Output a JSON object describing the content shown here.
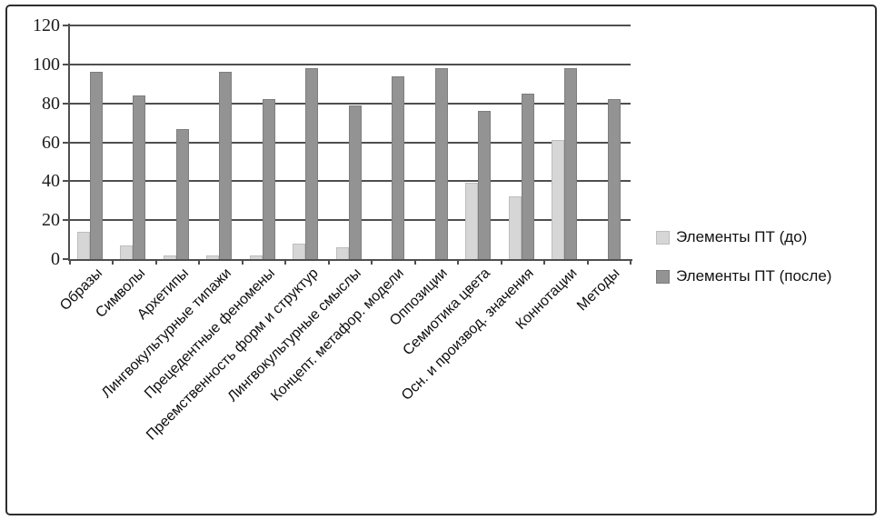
{
  "chart_data": {
    "type": "bar",
    "title": "",
    "xlabel": "",
    "ylabel": "",
    "categories": [
      "Образы",
      "Символы",
      "Архетипы",
      "Лингвокультурные типажи",
      "Прецедентные феномены",
      "Преемственность форм и структур",
      "Лингвокультурные смыслы",
      "Концепт. метафор. модели",
      "Оппозиции",
      "Семиотика цвета",
      "Осн. и производ. значения",
      "Коннотации",
      "Методы"
    ],
    "series": [
      {
        "name": "Элементы ПТ (до)",
        "color": "#d6d6d6",
        "border_color": "#bdbdbd",
        "values": [
          14,
          7,
          2,
          2,
          2,
          8,
          6,
          0,
          0,
          39,
          32,
          61,
          0
        ]
      },
      {
        "name": "Элементы ПТ (после)",
        "color": "#939393",
        "border_color": "#7e7e7e",
        "values": [
          96,
          84,
          67,
          96,
          82,
          98,
          79,
          94,
          98,
          76,
          85,
          98,
          82
        ]
      }
    ],
    "yticks": [
      0,
      20,
      40,
      60,
      80,
      100,
      120
    ],
    "ylim": [
      0,
      120
    ],
    "grid": true,
    "legend_position": "right",
    "axis_color": "#4f4f4f"
  }
}
